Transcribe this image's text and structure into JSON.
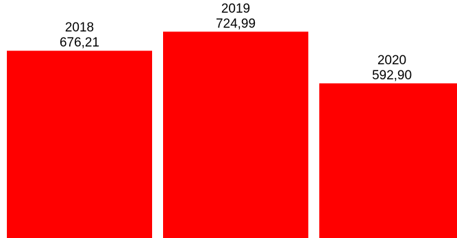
{
  "chart_data": {
    "type": "bar",
    "categories": [
      "2018",
      "2019",
      "2020"
    ],
    "values": [
      676.21,
      724.99,
      592.9
    ],
    "value_labels": [
      "676,21",
      "724,99",
      "592,90"
    ],
    "title": "",
    "xlabel": "",
    "ylabel": "",
    "grid": false,
    "legend": "none",
    "bar_color": "#ff0000",
    "label_color": "#000000"
  }
}
